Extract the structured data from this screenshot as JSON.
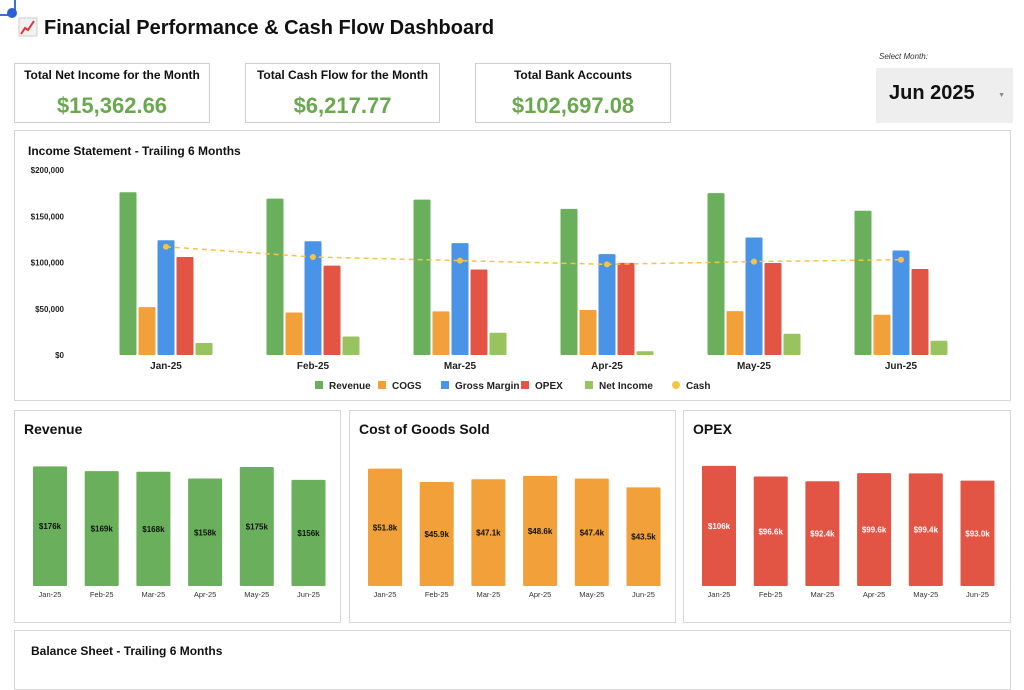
{
  "header": {
    "title": "Financial Performance & Cash Flow Dashboard",
    "title_icon": "chart-increasing-icon"
  },
  "kpis": [
    {
      "label": "Total Net Income for the Month",
      "value": "$15,362.66"
    },
    {
      "label": "Total Cash Flow for the Month",
      "value": "$6,217.77"
    },
    {
      "label": "Total Bank Accounts",
      "value": "$102,697.08"
    }
  ],
  "month_selector": {
    "label": "Select Month:",
    "value": "Jun 2025"
  },
  "colors": {
    "revenue": "#6aaf5c",
    "cogs": "#f1a03a",
    "gross_margin": "#4a94e8",
    "opex": "#e25444",
    "net_income": "#98c35e",
    "cash": "#f6c443",
    "kpi_value": "#6aa84f"
  },
  "chart_data": [
    {
      "type": "bar",
      "title": "Income Statement - Trailing 6 Months",
      "categories": [
        "Jan-25",
        "Feb-25",
        "Mar-25",
        "Apr-25",
        "May-25",
        "Jun-25"
      ],
      "ylim": [
        0,
        200000
      ],
      "yticks": [
        "$0",
        "$50,000",
        "$100,000",
        "$150,000",
        "$200,000"
      ],
      "legend": "bottom",
      "series": [
        {
          "name": "Revenue",
          "kind": "bar",
          "values": [
            176000,
            169000,
            168000,
            158000,
            175000,
            156000
          ]
        },
        {
          "name": "COGS",
          "kind": "bar",
          "values": [
            51800,
            45900,
            47100,
            48600,
            47400,
            43500
          ]
        },
        {
          "name": "Gross Margin",
          "kind": "bar",
          "values": [
            124000,
            123000,
            121000,
            109000,
            127000,
            113000
          ]
        },
        {
          "name": "OPEX",
          "kind": "bar",
          "values": [
            106000,
            96600,
            92400,
            99600,
            99400,
            93000
          ]
        },
        {
          "name": "Net Income",
          "kind": "bar",
          "values": [
            13000,
            20000,
            24000,
            4000,
            23000,
            15400
          ]
        },
        {
          "name": "Cash",
          "kind": "line-dashed",
          "values": [
            117000,
            106000,
            102000,
            98000,
            101000,
            103000
          ]
        }
      ]
    },
    {
      "type": "bar",
      "title": "Revenue",
      "categories": [
        "Jan-25",
        "Feb-25",
        "Mar-25",
        "Apr-25",
        "May-25",
        "Jun-25"
      ],
      "values": [
        176000,
        169000,
        168000,
        158000,
        175000,
        156000
      ],
      "labels": [
        "$176k",
        "$169k",
        "$168k",
        "$158k",
        "$175k",
        "$156k"
      ],
      "ylim": [
        0,
        200000
      ],
      "color": "#6aaf5c"
    },
    {
      "type": "bar",
      "title": "Cost of Goods Sold",
      "categories": [
        "Jan-25",
        "Feb-25",
        "Mar-25",
        "Apr-25",
        "May-25",
        "Jun-25"
      ],
      "values": [
        51800,
        45900,
        47100,
        48600,
        47400,
        43500
      ],
      "labels": [
        "$51.8k",
        "$45.9k",
        "$47.1k",
        "$48.6k",
        "$47.4k",
        "$43.5k"
      ],
      "ylim": [
        0,
        60000
      ],
      "color": "#f1a03a"
    },
    {
      "type": "bar",
      "title": "OPEX",
      "categories": [
        "Jan-25",
        "Feb-25",
        "Mar-25",
        "Apr-25",
        "May-25",
        "Jun-25"
      ],
      "values": [
        106000,
        96600,
        92400,
        99600,
        99400,
        93000
      ],
      "labels": [
        "$106k",
        "$96.6k",
        "$92.4k",
        "$99.6k",
        "$99.4k",
        "$93.0k"
      ],
      "ylim": [
        0,
        120000
      ],
      "color": "#e25444",
      "label_color": "#ffffff"
    }
  ],
  "balance_sheet": {
    "title": "Balance Sheet - Trailing 6 Months"
  }
}
